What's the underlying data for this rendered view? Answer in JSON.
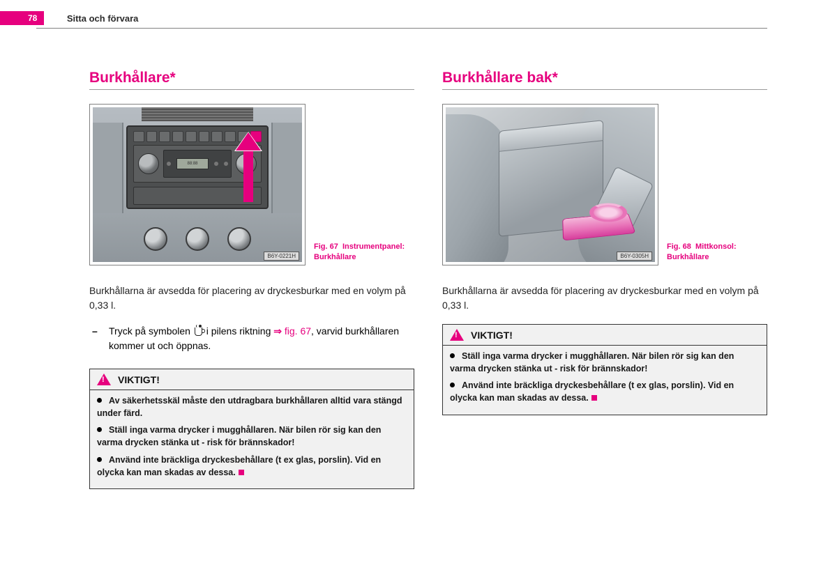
{
  "page_number": "78",
  "chapter_title": "Sitta och förvara",
  "left": {
    "heading": "Burkhållare*",
    "fig_code": "B6Y-0221H",
    "fig_caption_bold": "Fig. 67",
    "fig_caption_text": "Instrument­panel: Burkhållare",
    "intro": "Burkhållarna är avsedda för placering av dryckesburkar med en volym på 0,33 l.",
    "step_prefix": "Tryck på symbolen ",
    "step_middle": " i pilens riktning ",
    "step_ref": "fig. 67",
    "step_suffix": ", varvid burk­hållaren kommer ut och öppnas.",
    "warn_title": "VIKTIGT!",
    "warn1": "Av säkerhetsskäl måste den utdragbara burkhållaren alltid vara stängd under färd.",
    "warn2": "Ställ inga varma drycker i mugghållaren. När bilen rör sig kan den varma drycken stänka ut - risk för brännskador!",
    "warn3": "Använd inte bräckliga dryckesbehållare (t ex glas, porslin). Vid en olycka kan man skadas av dessa."
  },
  "right": {
    "heading": "Burkhållare bak*",
    "fig_code": "B6Y-0305H",
    "fig_caption_bold": "Fig. 68",
    "fig_caption_text": "Mittkonsol: Burkhållare",
    "intro": "Burkhållarna är avsedda för placering av dryckesburkar med en volym på 0,33 l.",
    "warn_title": "VIKTIGT!",
    "warn1": "Ställ inga varma drycker i mugghållaren. När bilen rör sig kan den varma drycken stänka ut - risk för brännskador!",
    "warn2": "Använd inte bräckliga dryckesbehållare (t ex glas, porslin). Vid en olycka kan man skadas av dessa."
  },
  "colors": {
    "accent": "#e6007e",
    "rule": "#808080",
    "warn_bg": "#f1f1f1"
  }
}
